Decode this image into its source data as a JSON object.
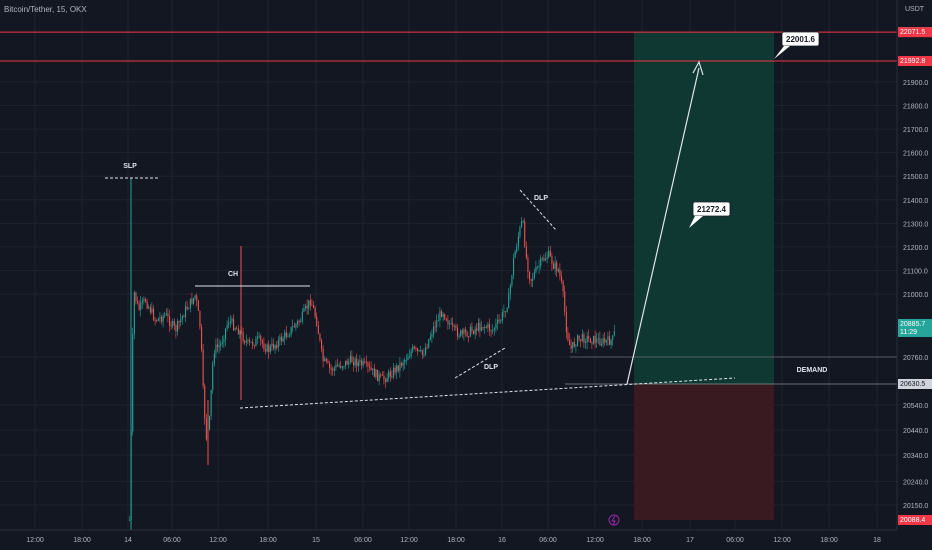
{
  "header": {
    "symbol_line": "Bitcoin/Tether, 15, OKX",
    "currency": "USDT"
  },
  "colors": {
    "background": "#131722",
    "grid": "#1f2330",
    "up": "#26a69a",
    "down": "#ef5350",
    "level_line": "#f23645",
    "profit_zone": "#0f3a35",
    "loss_zone": "#3b1a21",
    "text": "#b2b5be",
    "white": "#d1d4dc"
  },
  "chart_data": {
    "type": "candlestick",
    "y_axis": {
      "min": 20088.4,
      "max": 22100,
      "tick_labels": [
        "22071.9",
        "22071.5",
        "21992.8",
        "21900.0",
        "21800.0",
        "21700.0",
        "21600.0",
        "21500.0",
        "21400.0",
        "21300.0",
        "21200.0",
        "21100.0",
        "21000.0",
        "20885.7",
        "20760.0",
        "20630.5",
        "20540.0",
        "20440.0",
        "20340.0",
        "20240.0",
        "20150.0",
        "20088.4"
      ],
      "tick_values": [
        22071.9,
        22071.5,
        21992.8,
        21900,
        21800,
        21700,
        21600,
        21500,
        21400,
        21300,
        21200,
        21100,
        21000,
        20885.7,
        20760,
        20630.5,
        20540,
        20440,
        20340,
        20240,
        20150,
        20088.4
      ]
    },
    "x_axis": {
      "tick_labels": [
        "12:00",
        "18:00",
        "14",
        "06:00",
        "12:00",
        "18:00",
        "15",
        "06:00",
        "12:00",
        "18:00",
        "16",
        "06:00",
        "12:00",
        "18:00",
        "17",
        "06:00",
        "12:00",
        "18:00",
        "18"
      ]
    },
    "price_tags": [
      {
        "label": "22071.9",
        "value": 22071.9,
        "color": "#26a69a"
      },
      {
        "label": "22071.5",
        "value": 22071.5,
        "color": "#f23645"
      },
      {
        "label": "21992.8",
        "value": 21992.8,
        "color": "#f23645"
      },
      {
        "label": "20885.7",
        "value": 20885.7,
        "color": "#26a69a",
        "sub": "11:29"
      },
      {
        "label": "20630.5",
        "value": 20630.5,
        "color": "#d1d4dc"
      },
      {
        "label": "20088.4",
        "value": 20088.4,
        "color": "#f23645"
      }
    ],
    "horizontal_levels": [
      {
        "value": 22071.7,
        "color": "#f23645"
      },
      {
        "value": 21992.8,
        "color": "#f23645"
      }
    ],
    "annotations": [
      {
        "text": "SLP"
      },
      {
        "text": "CH"
      },
      {
        "text": "DLP"
      },
      {
        "text": "DLP"
      },
      {
        "text": "DEMAND"
      }
    ],
    "callouts": [
      {
        "text": "22001.6",
        "value": 22001.6
      },
      {
        "text": "21272.4",
        "value": 21272.4
      }
    ],
    "position": {
      "entry": 20630.5,
      "target": 22071.7,
      "stop": 20088.4
    }
  }
}
